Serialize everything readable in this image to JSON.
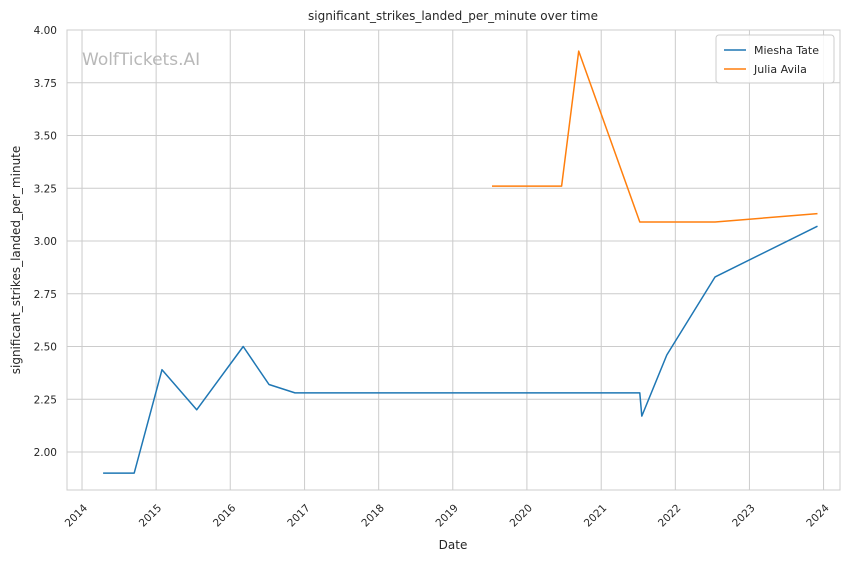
{
  "chart_data": {
    "type": "line",
    "title": "significant_strikes_landed_per_minute over time",
    "xlabel": "Date",
    "ylabel": "significant_strikes_landed_per_minute",
    "watermark": "WolfTickets.AI",
    "grid": true,
    "legend_position": "top-right",
    "xlim": [
      "2013-10-19",
      "2024-03-22"
    ],
    "ylim": [
      1.82,
      4.0
    ],
    "x_ticks": [
      "2014",
      "2015",
      "2016",
      "2017",
      "2018",
      "2019",
      "2020",
      "2021",
      "2022",
      "2023",
      "2024"
    ],
    "y_ticks": [
      "2.00",
      "2.25",
      "2.50",
      "2.75",
      "3.00",
      "3.25",
      "3.50",
      "3.75",
      "4.00"
    ],
    "series": [
      {
        "name": "Miesha Tate",
        "color": "#1f77b4",
        "points": [
          {
            "x": "2014-04-15",
            "y": 1.9
          },
          {
            "x": "2014-09-15",
            "y": 1.9
          },
          {
            "x": "2015-01-30",
            "y": 2.39
          },
          {
            "x": "2015-07-20",
            "y": 2.2
          },
          {
            "x": "2016-03-05",
            "y": 2.5
          },
          {
            "x": "2016-07-10",
            "y": 2.32
          },
          {
            "x": "2016-11-15",
            "y": 2.28
          },
          {
            "x": "2021-07-10",
            "y": 2.28
          },
          {
            "x": "2021-07-20",
            "y": 2.17
          },
          {
            "x": "2021-11-20",
            "y": 2.46
          },
          {
            "x": "2022-07-16",
            "y": 2.83
          },
          {
            "x": "2023-12-02",
            "y": 3.07
          }
        ]
      },
      {
        "name": "Julia Avila",
        "color": "#ff7f0e",
        "points": [
          {
            "x": "2019-07-13",
            "y": 3.26
          },
          {
            "x": "2020-06-20",
            "y": 3.26
          },
          {
            "x": "2020-09-12",
            "y": 3.9
          },
          {
            "x": "2021-07-10",
            "y": 3.09
          },
          {
            "x": "2022-07-16",
            "y": 3.09
          },
          {
            "x": "2023-12-02",
            "y": 3.13
          }
        ]
      }
    ]
  }
}
